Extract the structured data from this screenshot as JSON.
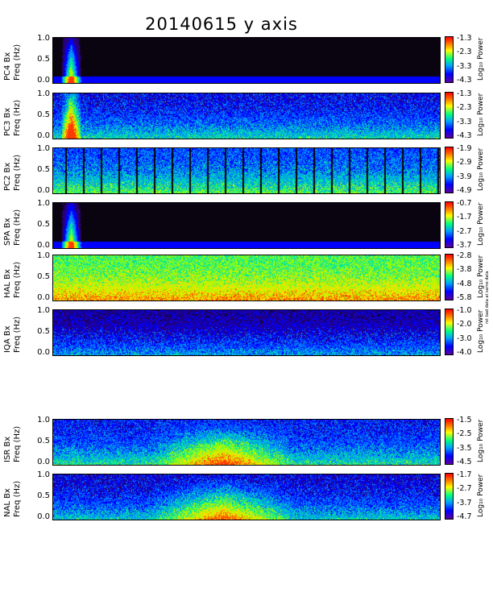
{
  "title": "20140615 y axis",
  "colorbar_unit": "Log₁₀ Power",
  "hal_note": "ret bad data at same data",
  "chart_data": [
    {
      "type": "heatmap",
      "station": "PC4",
      "ylabel": [
        "PC4 Bx",
        "Freq (Hz)"
      ],
      "yticks": [
        "1.0",
        "0.5",
        "0.0"
      ],
      "ylim": [
        0,
        1.0
      ],
      "cbar_ticks": [
        "-1.3",
        "-2.3",
        "-3.3",
        "-4.3"
      ],
      "cbar_range": [
        -4.3,
        -1.3
      ]
    },
    {
      "type": "heatmap",
      "station": "PC3",
      "ylabel": [
        "PC3 Bx",
        "Freq (Hz)"
      ],
      "yticks": [
        "1.0",
        "0.5",
        "0.0"
      ],
      "ylim": [
        0,
        1.0
      ],
      "cbar_ticks": [
        "-1.3",
        "-2.3",
        "-3.3",
        "-4.3"
      ],
      "cbar_range": [
        -4.3,
        -1.3
      ]
    },
    {
      "type": "heatmap",
      "station": "PC2",
      "ylabel": [
        "PC2 Bx",
        "Freq (Hz)"
      ],
      "yticks": [
        "1.0",
        "0.5",
        "0.0"
      ],
      "ylim": [
        0,
        1.0
      ],
      "cbar_ticks": [
        "-1.9",
        "-2.9",
        "-3.9",
        "-4.9"
      ],
      "cbar_range": [
        -4.9,
        -1.9
      ]
    },
    {
      "type": "heatmap",
      "station": "SPA",
      "ylabel": [
        "SPA Bx",
        "Freq (Hz)"
      ],
      "yticks": [
        "1.0",
        "0.5",
        "0.0"
      ],
      "ylim": [
        0,
        1.0
      ],
      "cbar_ticks": [
        "-0.7",
        "-1.7",
        "-2.7",
        "-3.7"
      ],
      "cbar_range": [
        -3.7,
        -0.7
      ]
    },
    {
      "type": "heatmap",
      "station": "HAL",
      "ylabel": [
        "HAL Bx",
        "Freq (Hz)"
      ],
      "yticks": [
        "1.0",
        "0.5",
        "0.0"
      ],
      "ylim": [
        0,
        1.0
      ],
      "cbar_ticks": [
        "-2.8",
        "-3.8",
        "-4.8",
        "-5.8"
      ],
      "cbar_range": [
        -5.8,
        -2.8
      ]
    },
    {
      "type": "heatmap",
      "station": "IQA",
      "ylabel": [
        "IQA Bx",
        "Freq (Hz)"
      ],
      "yticks": [
        "1.0",
        "0.5",
        "0.0"
      ],
      "ylim": [
        0,
        1.0
      ],
      "cbar_ticks": [
        "-1.0",
        "-2.0",
        "-3.0",
        "-4.0"
      ],
      "cbar_range": [
        -4.0,
        -1.0
      ]
    },
    {
      "type": "heatmap",
      "station": "ISR",
      "ylabel": [
        "ISR Bx",
        "Freq (Hz)"
      ],
      "yticks": [
        "1.0",
        "0.5",
        "0.0"
      ],
      "ylim": [
        0,
        1.0
      ],
      "cbar_ticks": [
        "-1.5",
        "-2.5",
        "-3.5",
        "-4.5"
      ],
      "cbar_range": [
        -4.5,
        -1.5
      ]
    },
    {
      "type": "heatmap",
      "station": "NAL",
      "ylabel": [
        "NAL Bx",
        "Freq (Hz)"
      ],
      "yticks": [
        "1.0",
        "0.5",
        "0.0"
      ],
      "ylim": [
        0,
        1.0
      ],
      "cbar_ticks": [
        "-1.7",
        "-2.7",
        "-3.7",
        "-4.7"
      ],
      "cbar_range": [
        -4.7,
        -1.7
      ]
    }
  ]
}
